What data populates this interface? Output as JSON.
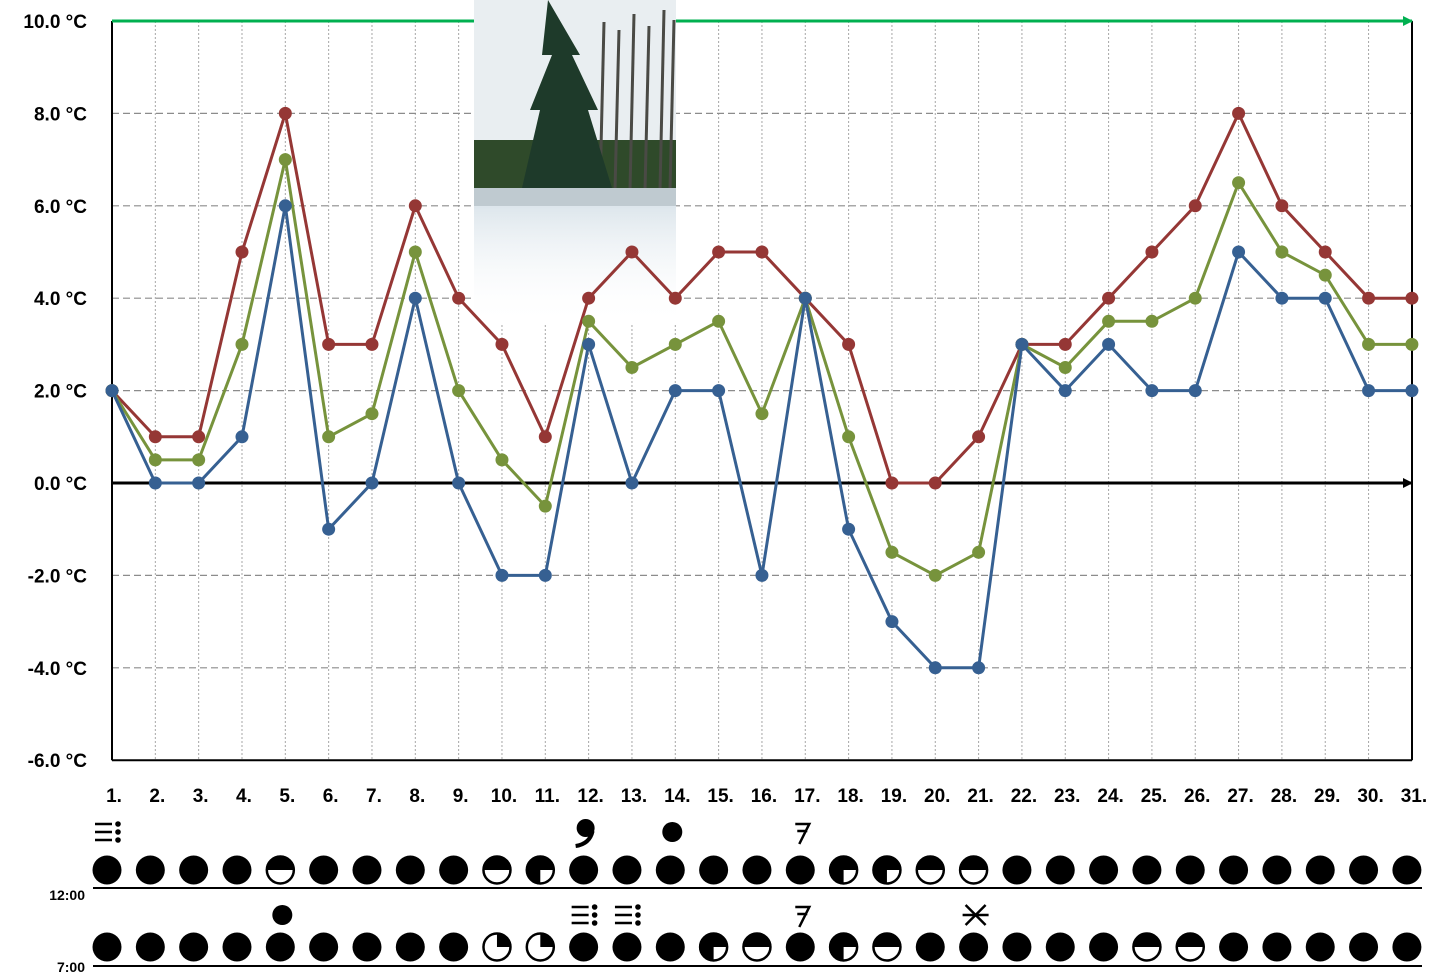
{
  "chart_data": {
    "type": "line",
    "ylim": [
      -6,
      10
    ],
    "y_ticks": [
      10,
      8,
      6,
      4,
      2,
      0,
      -2,
      -4,
      -6
    ],
    "y_tick_labels": [
      "10.0 °C",
      "8.0 °C",
      "6.0 °C",
      "4.0 °C",
      "2.0 °C",
      "0.0 °C",
      "-2.0 °C",
      "-4.0 °C",
      "-6.0 °C"
    ],
    "x_labels": [
      "1.",
      "2.",
      "3.",
      "4.",
      "5.",
      "6.",
      "7.",
      "8.",
      "9.",
      "10.",
      "11.",
      "12.",
      "13.",
      "14.",
      "15.",
      "16.",
      "17.",
      "18.",
      "19.",
      "20.",
      "21.",
      "22.",
      "23.",
      "24.",
      "25.",
      "26.",
      "27.",
      "28.",
      "29.",
      "30.",
      "31."
    ],
    "grid": true,
    "series": [
      {
        "color": "#953735",
        "values": [
          2,
          1,
          1,
          5,
          8,
          3,
          3,
          6,
          4,
          3,
          1,
          4,
          5,
          4,
          5,
          5,
          4,
          3,
          0,
          0,
          1,
          3,
          3,
          4,
          5,
          6,
          8,
          6,
          5,
          4,
          4
        ]
      },
      {
        "color": "#77933c",
        "values": [
          2,
          0.5,
          0.5,
          3,
          7,
          1,
          1.5,
          5,
          2,
          0.5,
          -0.5,
          3.5,
          2.5,
          3,
          3.5,
          1.5,
          4,
          1,
          -1.5,
          -2,
          -1.5,
          3,
          2.5,
          3.5,
          3.5,
          4,
          6.5,
          5,
          4.5,
          3,
          3
        ]
      },
      {
        "color": "#366092",
        "values": [
          2,
          0,
          0,
          1,
          6,
          -1,
          0,
          4,
          0,
          -2,
          -2,
          3,
          0,
          2,
          2,
          -2,
          4,
          -1,
          -3,
          -4,
          -4,
          3,
          2,
          3,
          2,
          2,
          5,
          4,
          4,
          2,
          2
        ]
      }
    ],
    "reference_lines": {
      "top_arrow_color": "#00b050",
      "zero_arrow_color": "#000000"
    },
    "weather_rows": [
      {
        "time_label": "12:00",
        "cloud_cover": [
          "full",
          "full",
          "full",
          "full",
          "half",
          "full",
          "full",
          "full",
          "full",
          "half",
          "three-quarter",
          "full",
          "full",
          "full",
          "full",
          "full",
          "full",
          "three-quarter",
          "three-quarter",
          "half",
          "half",
          "full",
          "full",
          "full",
          "full",
          "full",
          "full",
          "full",
          "full",
          "full",
          "full"
        ],
        "phenomena": [
          {
            "day": 1,
            "symbol": "fog-icon"
          },
          {
            "day": 12,
            "symbol": "drizzle-icon"
          },
          {
            "day": 14,
            "symbol": "rain-icon"
          },
          {
            "day": 17,
            "symbol": "wind-icon"
          }
        ]
      },
      {
        "time_label": "7:00",
        "cloud_cover": [
          "full",
          "full",
          "full",
          "full",
          "full",
          "full",
          "full",
          "full",
          "full",
          "quarter",
          "quarter",
          "full",
          "full",
          "full",
          "three-quarter",
          "half",
          "full",
          "three-quarter",
          "half",
          "full",
          "full",
          "full",
          "full",
          "full",
          "half",
          "half",
          "full",
          "full",
          "full",
          "full",
          "full"
        ],
        "phenomena": [
          {
            "day": 5,
            "symbol": "rain-icon"
          },
          {
            "day": 12,
            "symbol": "fog-icon"
          },
          {
            "day": 13,
            "symbol": "fog-icon"
          },
          {
            "day": 17,
            "symbol": "wind-icon"
          },
          {
            "day": 21,
            "symbol": "snow-icon"
          }
        ]
      }
    ]
  }
}
